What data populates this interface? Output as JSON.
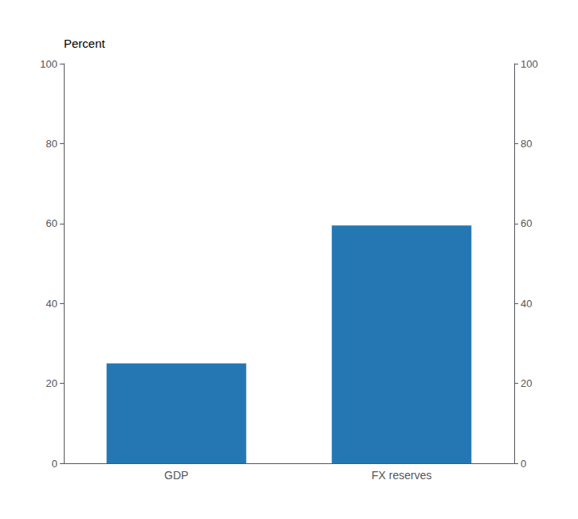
{
  "chart_data": {
    "type": "bar",
    "categories": [
      "GDP",
      "FX reserves"
    ],
    "values": [
      25,
      59.5
    ],
    "color": "#2477b3",
    "ylabel": "Percent",
    "ylim": [
      0,
      100
    ],
    "yticks": [
      0,
      20,
      40,
      60,
      80,
      100
    ],
    "y2lim": [
      0,
      100
    ],
    "y2ticks": [
      0,
      20,
      40,
      60,
      80,
      100
    ],
    "grid": false
  }
}
